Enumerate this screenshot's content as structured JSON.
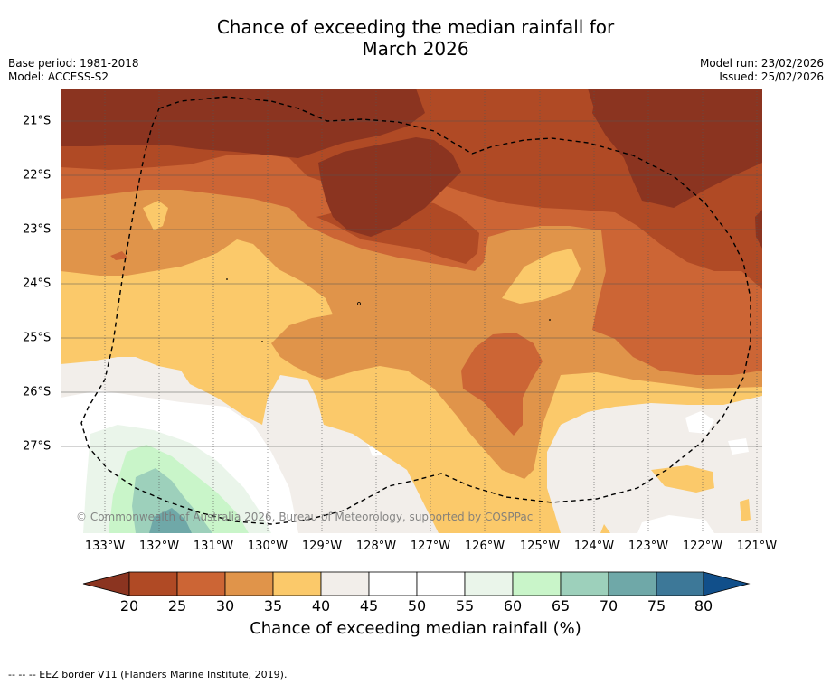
{
  "title_line1": "Chance of exceeding the median rainfall for",
  "title_line2": "March 2026",
  "base_period": "Base period: 1981-2018",
  "model": "Model: ACCESS-S2",
  "model_run": "Model run: 23/02/2026",
  "issued": "Issued: 25/02/2026",
  "copyright": "© Commonwealth of Australia 2026, Bureau of Meteorology, supported by COSPPac",
  "footer": "--  --  -- EEZ border V11 (Flanders Marine Institute, 2019).",
  "longitude_labels": [
    "133°W",
    "132°W",
    "131°W",
    "130°W",
    "129°W",
    "128°W",
    "127°W",
    "126°W",
    "125°W",
    "124°W",
    "123°W",
    "122°W",
    "121°W"
  ],
  "latitude_labels": [
    "21°S",
    "22°S",
    "23°S",
    "24°S",
    "25°S",
    "26°S",
    "27°S"
  ],
  "colorbar": {
    "title": "Chance of exceeding median rainfall (%)",
    "tick_labels": [
      "20",
      "25",
      "30",
      "35",
      "40",
      "45",
      "50",
      "55",
      "60",
      "65",
      "70",
      "75",
      "80"
    ],
    "colors": {
      "below_20": "#8b3420",
      "20_25": "#b04a25",
      "25_30": "#cc6535",
      "30_35": "#e0944a",
      "35_40": "#fbc96a",
      "40_45": "#f2eeea",
      "45_50": "#ffffff",
      "50_55": "#ffffff",
      "55_60": "#eaf5ea",
      "60_65": "#c9f5c9",
      "65_70": "#9dd0bb",
      "70_75": "#6fa8a8",
      "75_80": "#3d7898",
      "above_80": "#114f8a"
    }
  }
}
